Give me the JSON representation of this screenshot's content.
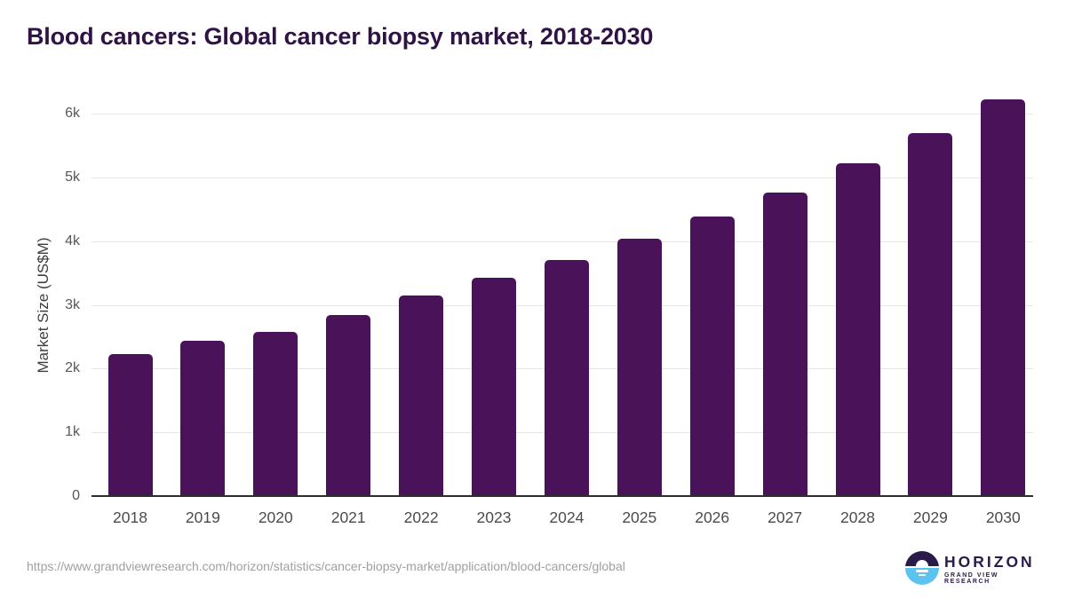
{
  "page": {
    "title": "Blood cancers: Global cancer biopsy market, 2018-2030",
    "source_url": "https://www.grandviewresearch.com/horizon/statistics/cancer-biopsy-market/application/blood-cancers/global"
  },
  "logo": {
    "name": "HORIZON",
    "subtitle": "GRAND VIEW RESEARCH"
  },
  "colors": {
    "bar": "#4a1259",
    "title_text": "#2f1345",
    "axis_line": "#2d2d2d",
    "gridline": "#e6e6e6",
    "tick_label": "#575757",
    "x_tick_label": "#4b4b4b",
    "axis_title": "#3d3d3d",
    "url_text": "#a0a0a0",
    "logo_dark": "#2b1b4a",
    "logo_blue": "#5cc3ee"
  },
  "chart_data": {
    "type": "bar",
    "title": "Blood cancers: Global cancer biopsy market, 2018-2030",
    "categories": [
      "2018",
      "2019",
      "2020",
      "2021",
      "2022",
      "2023",
      "2024",
      "2025",
      "2026",
      "2027",
      "2028",
      "2029",
      "2030"
    ],
    "values": [
      2230,
      2440,
      2580,
      2840,
      3150,
      3420,
      3700,
      4040,
      4390,
      4770,
      5230,
      5700,
      6230
    ],
    "xlabel": "",
    "ylabel": "Market Size (US$M)",
    "ylim": [
      0,
      6500
    ],
    "yticks": [
      {
        "value": 0,
        "label": "0"
      },
      {
        "value": 1000,
        "label": "1k"
      },
      {
        "value": 2000,
        "label": "2k"
      },
      {
        "value": 3000,
        "label": "3k"
      },
      {
        "value": 4000,
        "label": "4k"
      },
      {
        "value": 5000,
        "label": "5k"
      },
      {
        "value": 6000,
        "label": "6k"
      }
    ],
    "grid": true,
    "legend": false,
    "bar_color": "#4a1259"
  }
}
